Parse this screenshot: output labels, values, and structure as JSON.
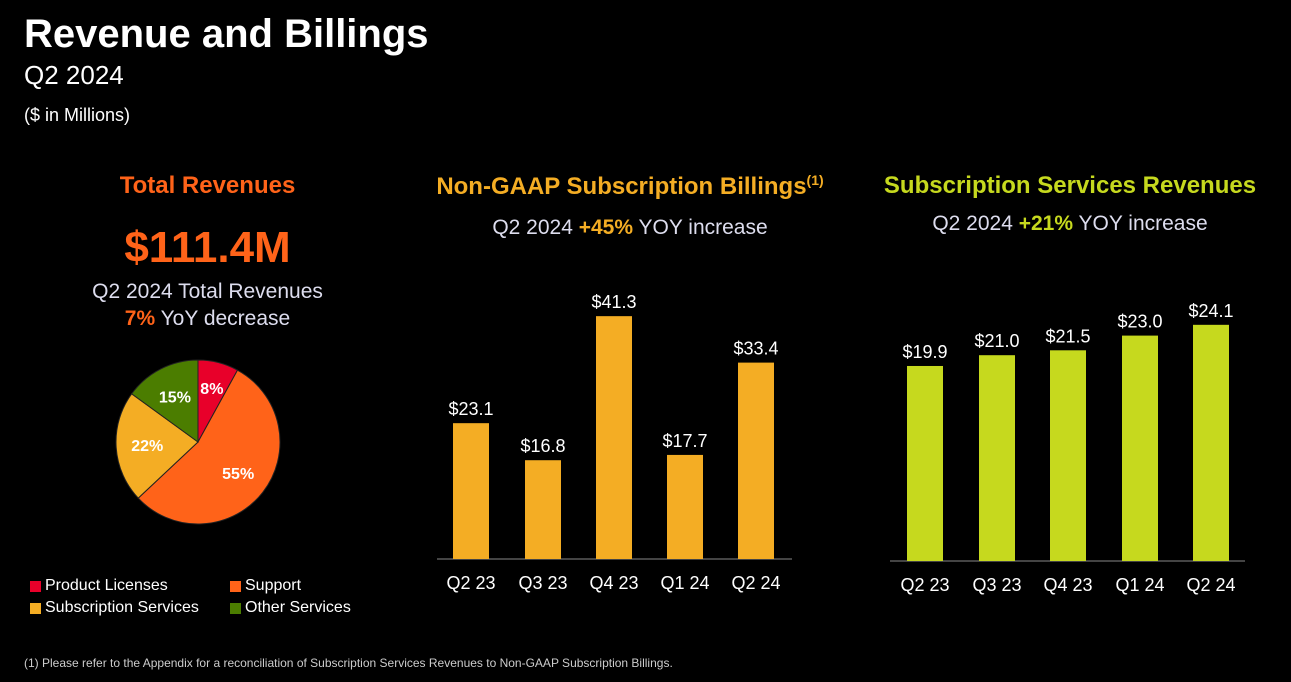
{
  "header": {
    "title": "Revenue and Billings",
    "subtitle": "Q2 2024",
    "units": "($ in Millions)"
  },
  "total_revenues": {
    "title": "Total Revenues",
    "value": "$111.4M",
    "desc": "Q2 2024 Total Revenues",
    "change_value": "7%",
    "change_text": " YoY decrease"
  },
  "billings": {
    "title": "Non-GAAP Subscription Billings",
    "footnote_marker": "(1)",
    "sub_prefix": "Q2 2024 ",
    "sub_value": "+45%",
    "sub_suffix": " YOY increase"
  },
  "subscription": {
    "title": "Subscription Services Revenues",
    "sub_prefix": "Q2 2024 ",
    "sub_value": "+21%",
    "sub_suffix": " YOY increase"
  },
  "footnote": "(1) Please refer to the Appendix for a reconciliation of Subscription Services Revenues to Non-GAAP Subscription Billings.",
  "chart_data": [
    {
      "type": "pie",
      "categories": [
        "Product Licenses",
        "Support",
        "Subscription Services",
        "Other Services"
      ],
      "values": [
        8,
        55,
        22,
        15
      ],
      "labels": [
        "8%",
        "55%",
        "22%",
        "15%"
      ],
      "colors": [
        "#e8002a",
        "#ff6319",
        "#f4ad24",
        "#4b7d00"
      ],
      "legend": "bottom"
    },
    {
      "type": "bar",
      "categories": [
        "Q2 23",
        "Q3 23",
        "Q4 23",
        "Q1 24",
        "Q2 24"
      ],
      "values": [
        23.1,
        16.8,
        41.3,
        17.7,
        33.4
      ],
      "labels": [
        "$23.1",
        "$16.8",
        "$41.3",
        "$17.7",
        "$33.4"
      ],
      "color": "#f4ad24",
      "grid": false
    },
    {
      "type": "bar",
      "categories": [
        "Q2 23",
        "Q3 23",
        "Q4 23",
        "Q1 24",
        "Q2 24"
      ],
      "values": [
        19.9,
        21.0,
        21.5,
        23.0,
        24.1
      ],
      "labels": [
        "$19.9",
        "$21.0",
        "$21.5",
        "$23.0",
        "$24.1"
      ],
      "color": "#c6d91e",
      "grid": false
    }
  ]
}
